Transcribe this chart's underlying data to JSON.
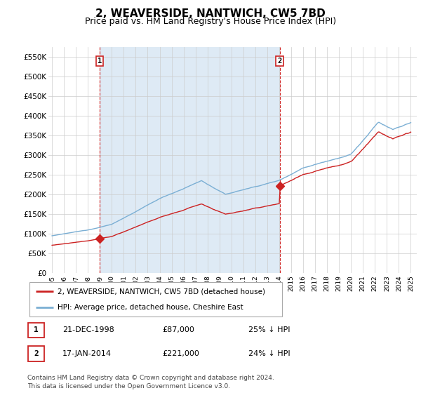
{
  "title": "2, WEAVERSIDE, NANTWICH, CW5 7BD",
  "subtitle": "Price paid vs. HM Land Registry's House Price Index (HPI)",
  "title_fontsize": 11,
  "subtitle_fontsize": 9,
  "ylabel_ticks": [
    "£0",
    "£50K",
    "£100K",
    "£150K",
    "£200K",
    "£250K",
    "£300K",
    "£350K",
    "£400K",
    "£450K",
    "£500K",
    "£550K"
  ],
  "ytick_values": [
    0,
    50000,
    100000,
    150000,
    200000,
    250000,
    300000,
    350000,
    400000,
    450000,
    500000,
    550000
  ],
  "ylim": [
    0,
    575000
  ],
  "hpi_color": "#7bafd4",
  "price_color": "#cc2222",
  "shade_color": "#deeaf5",
  "background_color": "#ffffff",
  "grid_color": "#cccccc",
  "legend_label_red": "2, WEAVERSIDE, NANTWICH, CW5 7BD (detached house)",
  "legend_label_blue": "HPI: Average price, detached house, Cheshire East",
  "purchase1_date": "21-DEC-1998",
  "purchase1_price": "£87,000",
  "purchase1_hpi": "25% ↓ HPI",
  "purchase2_date": "17-JAN-2014",
  "purchase2_price": "£221,000",
  "purchase2_hpi": "24% ↓ HPI",
  "footnote": "Contains HM Land Registry data © Crown copyright and database right 2024.\nThis data is licensed under the Open Government Licence v3.0.",
  "purchase1_year": 1998.97,
  "purchase1_value": 87000,
  "purchase2_year": 2014.04,
  "purchase2_value": 221000,
  "xlim_left": 1994.7,
  "xlim_right": 2025.5
}
